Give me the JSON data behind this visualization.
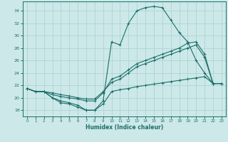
{
  "xlabel": "Humidex (Indice chaleur)",
  "bg_color": "#cce8e8",
  "grid_color": "#aad0d0",
  "line_color": "#1a6e6a",
  "xlim": [
    -0.5,
    23.5
  ],
  "ylim": [
    17.0,
    35.5
  ],
  "xticks": [
    0,
    1,
    2,
    3,
    4,
    5,
    6,
    7,
    8,
    9,
    10,
    11,
    12,
    13,
    14,
    15,
    16,
    17,
    18,
    19,
    20,
    21,
    22,
    23
  ],
  "yticks": [
    18,
    20,
    22,
    24,
    26,
    28,
    30,
    32,
    34
  ],
  "curve_top": {
    "x": [
      0,
      1,
      2,
      3,
      4,
      5,
      6,
      7,
      8,
      9,
      10,
      11,
      12,
      13,
      14,
      15,
      16,
      17,
      18,
      19,
      20,
      21,
      22,
      23
    ],
    "y": [
      21.5,
      21.0,
      21.0,
      20.0,
      19.5,
      19.2,
      18.8,
      18.0,
      18.0,
      19.5,
      29.0,
      28.5,
      32.0,
      34.0,
      34.5,
      34.7,
      34.5,
      32.5,
      30.5,
      29.0,
      26.0,
      24.0,
      22.3,
      22.3
    ]
  },
  "curve_mid1": {
    "x": [
      0,
      1,
      2,
      3,
      4,
      5,
      6,
      7,
      8,
      9,
      10,
      11,
      12,
      13,
      14,
      15,
      16,
      17,
      18,
      19,
      20,
      21,
      22,
      23
    ],
    "y": [
      21.5,
      21.0,
      21.0,
      20.5,
      20.2,
      20.0,
      19.8,
      19.5,
      19.5,
      20.8,
      23.0,
      23.5,
      24.5,
      25.5,
      26.0,
      26.5,
      27.0,
      27.5,
      28.0,
      28.8,
      29.0,
      27.0,
      22.3,
      22.3
    ]
  },
  "curve_mid2": {
    "x": [
      0,
      1,
      2,
      3,
      4,
      5,
      6,
      7,
      8,
      9,
      10,
      11,
      12,
      13,
      14,
      15,
      16,
      17,
      18,
      19,
      20,
      21,
      22,
      23
    ],
    "y": [
      21.5,
      21.0,
      21.0,
      20.8,
      20.5,
      20.3,
      20.0,
      19.8,
      19.8,
      21.0,
      22.5,
      23.0,
      24.0,
      25.0,
      25.5,
      26.0,
      26.5,
      27.0,
      27.5,
      28.0,
      28.5,
      26.5,
      22.3,
      22.3
    ]
  },
  "curve_bot": {
    "x": [
      0,
      1,
      2,
      3,
      4,
      5,
      6,
      7,
      8,
      9,
      10,
      11,
      12,
      13,
      14,
      15,
      16,
      17,
      18,
      19,
      20,
      21,
      22,
      23
    ],
    "y": [
      21.5,
      21.0,
      21.0,
      20.0,
      19.2,
      19.0,
      18.5,
      18.0,
      18.0,
      19.0,
      21.0,
      21.3,
      21.5,
      21.8,
      22.0,
      22.2,
      22.4,
      22.6,
      22.8,
      23.0,
      23.2,
      23.4,
      22.3,
      22.3
    ]
  }
}
